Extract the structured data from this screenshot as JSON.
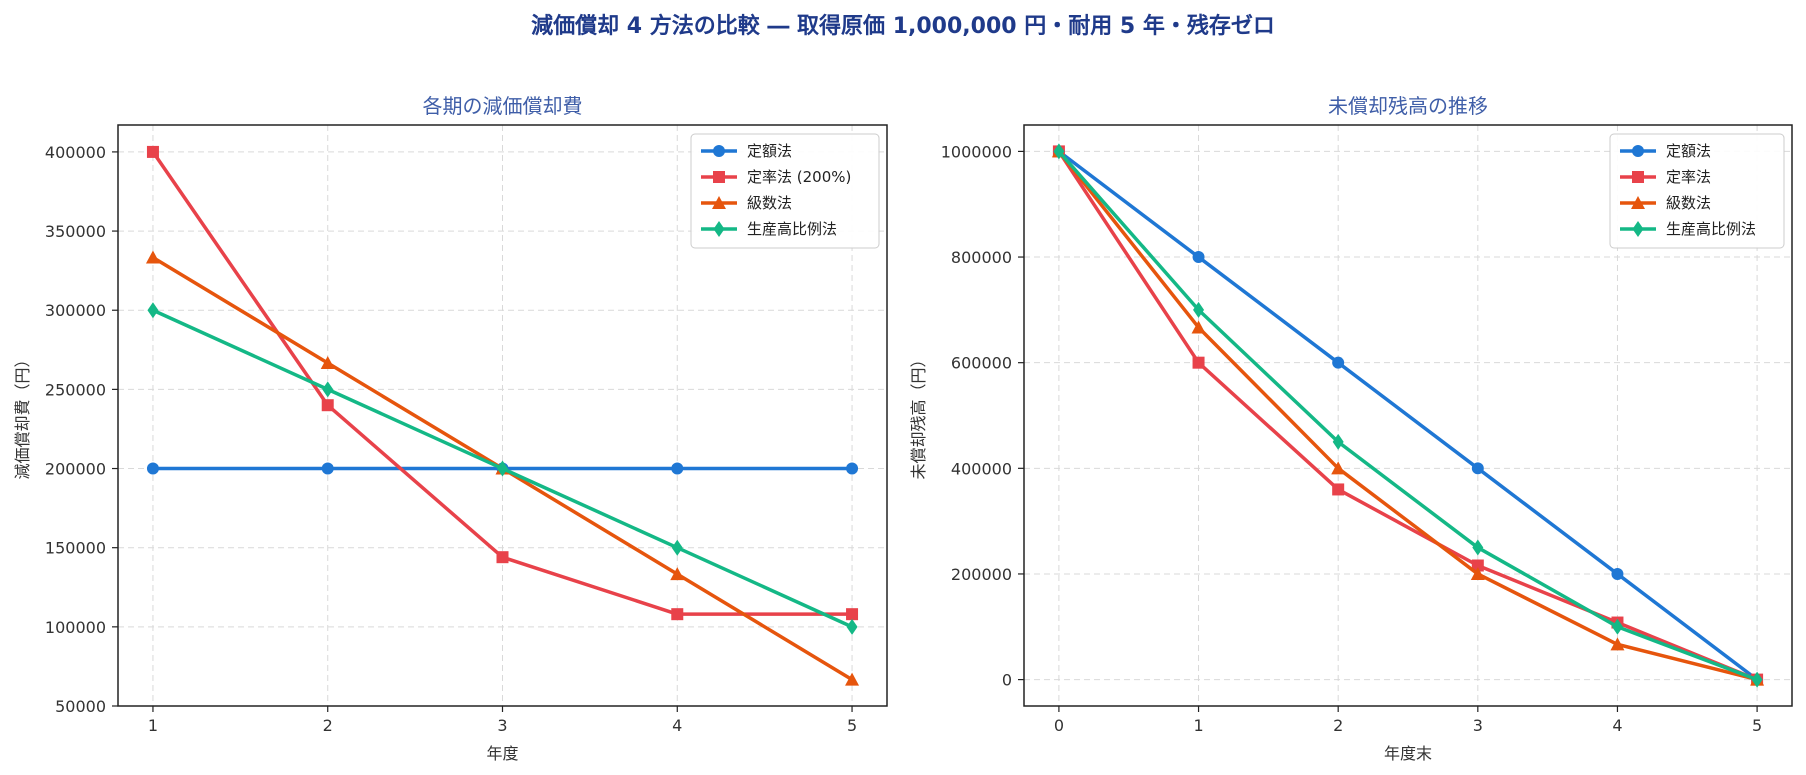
{
  "figure": {
    "title": "減価償却 4 方法の比較 ― 取得原価 1,000,000 円・耐用 5 年・残存ゼロ"
  },
  "chart_data": [
    {
      "type": "line",
      "title": "各期の減価償却費",
      "xlabel": "年度",
      "ylabel": "減価償却費（円）",
      "x": [
        1,
        2,
        3,
        4,
        5
      ],
      "xlim": [
        0.8,
        5.2
      ],
      "ylim": [
        50000,
        417000
      ],
      "xticks": [
        1,
        2,
        3,
        4,
        5
      ],
      "yticks": [
        50000,
        100000,
        150000,
        200000,
        250000,
        300000,
        350000,
        400000
      ],
      "grid": true,
      "legend_position": "top-right",
      "series": [
        {
          "name": "定額法",
          "values": [
            200000,
            200000,
            200000,
            200000,
            200000
          ],
          "color": "#1f77d4",
          "marker": "circle"
        },
        {
          "name": "定率法 (200%)",
          "values": [
            400000,
            240000,
            144000,
            108000,
            108000
          ],
          "color": "#e8424a",
          "marker": "square"
        },
        {
          "name": "級数法",
          "values": [
            333333,
            266667,
            200000,
            133333,
            66667
          ],
          "color": "#e6550d",
          "marker": "triangle"
        },
        {
          "name": "生産高比例法",
          "values": [
            300000,
            250000,
            200000,
            150000,
            100000
          ],
          "color": "#14b886",
          "marker": "diamond"
        }
      ]
    },
    {
      "type": "line",
      "title": "未償却残高の推移",
      "xlabel": "年度末",
      "ylabel": "未償却残高（円）",
      "x": [
        0,
        1,
        2,
        3,
        4,
        5
      ],
      "xlim": [
        -0.25,
        5.25
      ],
      "ylim": [
        -50000,
        1050000
      ],
      "xticks": [
        0,
        1,
        2,
        3,
        4,
        5
      ],
      "yticks": [
        0,
        200000,
        400000,
        600000,
        800000,
        1000000
      ],
      "grid": true,
      "legend_position": "top-right",
      "series": [
        {
          "name": "定額法",
          "values": [
            1000000,
            800000,
            600000,
            400000,
            200000,
            0
          ],
          "color": "#1f77d4",
          "marker": "circle"
        },
        {
          "name": "定率法",
          "values": [
            1000000,
            600000,
            360000,
            216000,
            108000,
            0
          ],
          "color": "#e8424a",
          "marker": "square"
        },
        {
          "name": "級数法",
          "values": [
            1000000,
            666667,
            400000,
            200000,
            66667,
            0
          ],
          "color": "#e6550d",
          "marker": "triangle"
        },
        {
          "name": "生産高比例法",
          "values": [
            1000000,
            700000,
            450000,
            250000,
            100000,
            0
          ],
          "color": "#14b886",
          "marker": "diamond"
        }
      ]
    }
  ]
}
